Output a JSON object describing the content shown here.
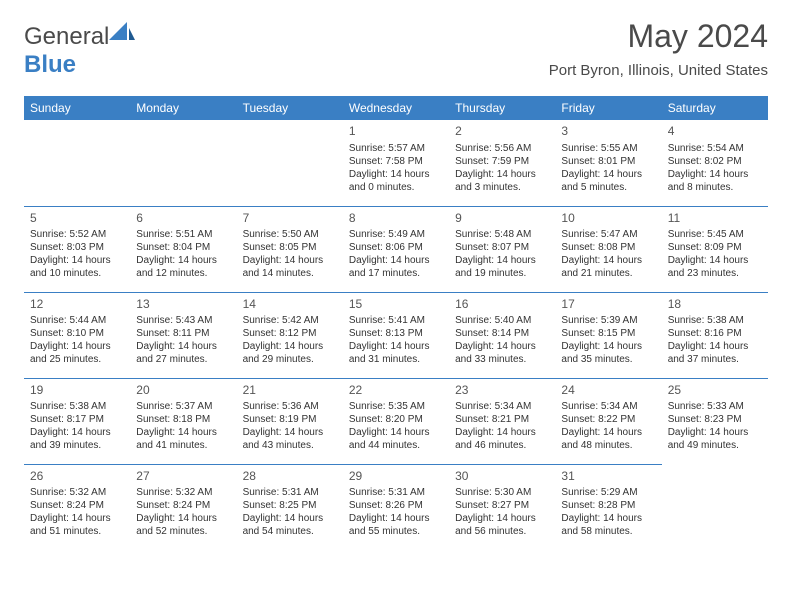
{
  "logo": {
    "text1": "General",
    "text2": "Blue"
  },
  "header": {
    "title": "May 2024",
    "subtitle": "Port Byron, Illinois, United States"
  },
  "colors": {
    "header_bg": "#3a7fc4",
    "header_text": "#ffffff",
    "border": "#3a7fc4",
    "text": "#333333"
  },
  "dow": [
    "Sunday",
    "Monday",
    "Tuesday",
    "Wednesday",
    "Thursday",
    "Friday",
    "Saturday"
  ],
  "weeks": [
    [
      null,
      null,
      null,
      {
        "n": "1",
        "sr": "5:57 AM",
        "ss": "7:58 PM",
        "dl": "14 hours and 0 minutes."
      },
      {
        "n": "2",
        "sr": "5:56 AM",
        "ss": "7:59 PM",
        "dl": "14 hours and 3 minutes."
      },
      {
        "n": "3",
        "sr": "5:55 AM",
        "ss": "8:01 PM",
        "dl": "14 hours and 5 minutes."
      },
      {
        "n": "4",
        "sr": "5:54 AM",
        "ss": "8:02 PM",
        "dl": "14 hours and 8 minutes."
      }
    ],
    [
      {
        "n": "5",
        "sr": "5:52 AM",
        "ss": "8:03 PM",
        "dl": "14 hours and 10 minutes."
      },
      {
        "n": "6",
        "sr": "5:51 AM",
        "ss": "8:04 PM",
        "dl": "14 hours and 12 minutes."
      },
      {
        "n": "7",
        "sr": "5:50 AM",
        "ss": "8:05 PM",
        "dl": "14 hours and 14 minutes."
      },
      {
        "n": "8",
        "sr": "5:49 AM",
        "ss": "8:06 PM",
        "dl": "14 hours and 17 minutes."
      },
      {
        "n": "9",
        "sr": "5:48 AM",
        "ss": "8:07 PM",
        "dl": "14 hours and 19 minutes."
      },
      {
        "n": "10",
        "sr": "5:47 AM",
        "ss": "8:08 PM",
        "dl": "14 hours and 21 minutes."
      },
      {
        "n": "11",
        "sr": "5:45 AM",
        "ss": "8:09 PM",
        "dl": "14 hours and 23 minutes."
      }
    ],
    [
      {
        "n": "12",
        "sr": "5:44 AM",
        "ss": "8:10 PM",
        "dl": "14 hours and 25 minutes."
      },
      {
        "n": "13",
        "sr": "5:43 AM",
        "ss": "8:11 PM",
        "dl": "14 hours and 27 minutes."
      },
      {
        "n": "14",
        "sr": "5:42 AM",
        "ss": "8:12 PM",
        "dl": "14 hours and 29 minutes."
      },
      {
        "n": "15",
        "sr": "5:41 AM",
        "ss": "8:13 PM",
        "dl": "14 hours and 31 minutes."
      },
      {
        "n": "16",
        "sr": "5:40 AM",
        "ss": "8:14 PM",
        "dl": "14 hours and 33 minutes."
      },
      {
        "n": "17",
        "sr": "5:39 AM",
        "ss": "8:15 PM",
        "dl": "14 hours and 35 minutes."
      },
      {
        "n": "18",
        "sr": "5:38 AM",
        "ss": "8:16 PM",
        "dl": "14 hours and 37 minutes."
      }
    ],
    [
      {
        "n": "19",
        "sr": "5:38 AM",
        "ss": "8:17 PM",
        "dl": "14 hours and 39 minutes."
      },
      {
        "n": "20",
        "sr": "5:37 AM",
        "ss": "8:18 PM",
        "dl": "14 hours and 41 minutes."
      },
      {
        "n": "21",
        "sr": "5:36 AM",
        "ss": "8:19 PM",
        "dl": "14 hours and 43 minutes."
      },
      {
        "n": "22",
        "sr": "5:35 AM",
        "ss": "8:20 PM",
        "dl": "14 hours and 44 minutes."
      },
      {
        "n": "23",
        "sr": "5:34 AM",
        "ss": "8:21 PM",
        "dl": "14 hours and 46 minutes."
      },
      {
        "n": "24",
        "sr": "5:34 AM",
        "ss": "8:22 PM",
        "dl": "14 hours and 48 minutes."
      },
      {
        "n": "25",
        "sr": "5:33 AM",
        "ss": "8:23 PM",
        "dl": "14 hours and 49 minutes."
      }
    ],
    [
      {
        "n": "26",
        "sr": "5:32 AM",
        "ss": "8:24 PM",
        "dl": "14 hours and 51 minutes."
      },
      {
        "n": "27",
        "sr": "5:32 AM",
        "ss": "8:24 PM",
        "dl": "14 hours and 52 minutes."
      },
      {
        "n": "28",
        "sr": "5:31 AM",
        "ss": "8:25 PM",
        "dl": "14 hours and 54 minutes."
      },
      {
        "n": "29",
        "sr": "5:31 AM",
        "ss": "8:26 PM",
        "dl": "14 hours and 55 minutes."
      },
      {
        "n": "30",
        "sr": "5:30 AM",
        "ss": "8:27 PM",
        "dl": "14 hours and 56 minutes."
      },
      {
        "n": "31",
        "sr": "5:29 AM",
        "ss": "8:28 PM",
        "dl": "14 hours and 58 minutes."
      },
      null
    ]
  ],
  "labels": {
    "sunrise": "Sunrise: ",
    "sunset": "Sunset: ",
    "daylight": "Daylight: "
  }
}
